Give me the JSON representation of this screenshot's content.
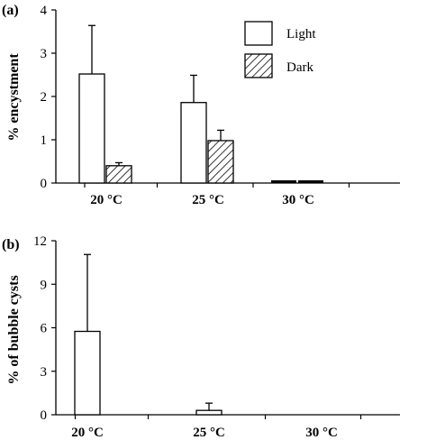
{
  "chart_data": [
    {
      "type": "bar",
      "panel_label": "(a)",
      "categories": [
        "20 °C",
        "25 °C",
        "30 °C"
      ],
      "ylabel": "% encystment",
      "ylim": [
        0,
        4
      ],
      "yticks": [
        "0",
        "1",
        "2",
        "3",
        "4"
      ],
      "legend_position": "top-right",
      "series": [
        {
          "name": "Light",
          "fill": "white",
          "values": [
            2.52,
            1.86,
            0.0
          ],
          "errors": [
            1.12,
            0.63,
            0.0
          ]
        },
        {
          "name": "Dark",
          "fill": "hatched",
          "values": [
            0.4,
            0.98,
            0.0
          ],
          "errors": [
            0.07,
            0.24,
            0.0
          ]
        }
      ]
    },
    {
      "type": "bar",
      "panel_label": "(b)",
      "categories": [
        "20 °C",
        "25 °C",
        "30 °C"
      ],
      "ylabel": "% of bubble cysts",
      "ylim": [
        0,
        12
      ],
      "yticks": [
        "0",
        "3",
        "6",
        "9",
        "12"
      ],
      "series": [
        {
          "fill": "white",
          "values": [
            5.75,
            0.3,
            0.0
          ],
          "errors": [
            5.3,
            0.5,
            0.0
          ]
        }
      ]
    }
  ]
}
